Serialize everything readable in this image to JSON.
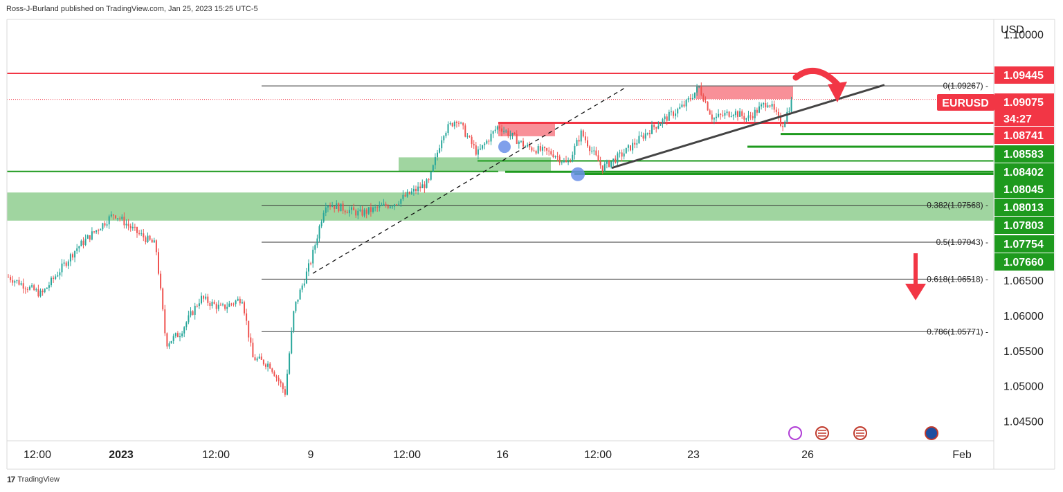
{
  "header": {
    "publisher_line": "Ross-J-Burland published on TradingView.com, Jan 25, 2023 15:25 UTC-5"
  },
  "footer": {
    "brand": "TradingView",
    "logo_glyph": "17"
  },
  "chart_data": {
    "type": "candlestick",
    "symbol": "EURUSD",
    "currency_label": "USD",
    "countdown": "34:27",
    "x_ticks": [
      "12:00",
      "2023",
      "12:00",
      "9",
      "12:00",
      "16",
      "12:00",
      "23",
      "26",
      "Feb"
    ],
    "y_ticks": [
      "1.10000",
      "1.06500",
      "1.06000",
      "1.05500",
      "1.05000",
      "1.04500"
    ],
    "ylim": [
      1.0425,
      1.102
    ],
    "last_price": "1.09075",
    "price_labels": [
      {
        "text": "1.09445",
        "value": 1.09445,
        "color": "#f23645"
      },
      {
        "text": "1.09075",
        "value": 1.09075,
        "color": "#f23645"
      },
      {
        "text": "1.08741",
        "value": 1.08741,
        "color": "#f23645"
      },
      {
        "text": "1.08583",
        "value": 1.08583,
        "color": "#1e9a1e"
      },
      {
        "text": "1.08402",
        "value": 1.08402,
        "color": "#1e9a1e"
      },
      {
        "text": "1.08045",
        "value": 1.08045,
        "color": "#1e9a1e"
      },
      {
        "text": "1.08013",
        "value": 1.08013,
        "color": "#1e9a1e"
      },
      {
        "text": "1.07803",
        "value": 1.07803,
        "color": "#1e9a1e"
      },
      {
        "text": "1.07754",
        "value": 1.07754,
        "color": "#1e9a1e"
      },
      {
        "text": "1.07660",
        "value": 1.0766,
        "color": "#1e9a1e"
      }
    ],
    "fib_levels": [
      {
        "label": "0(1.09267)",
        "value": 1.09267
      },
      {
        "label": "0.382(1.07568)",
        "value": 1.07568
      },
      {
        "label": "0.5(1.07043)",
        "value": 1.07043
      },
      {
        "label": "0.618(1.06518)",
        "value": 1.06518
      },
      {
        "label": "0.786(1.05771)",
        "value": 1.05771
      }
    ],
    "resistance_line": 1.09445,
    "support_line": 1.0805,
    "support_zone": [
      1.0735,
      1.0775
    ],
    "demand_zone": [
      1.0805,
      1.0825
    ],
    "supply_zones": [
      [
        1.0908,
        1.0926
      ],
      [
        1.0855,
        1.0874
      ]
    ],
    "horizontal_levels": [
      1.08741,
      1.08583,
      1.08402,
      1.08045,
      1.08013
    ],
    "colors": {
      "up": "#26a69a",
      "down": "#ef5350",
      "red": "#f23645",
      "green": "#1e9a1e",
      "zone_green": "#8fce8f",
      "zone_red": "#f77c86"
    }
  }
}
